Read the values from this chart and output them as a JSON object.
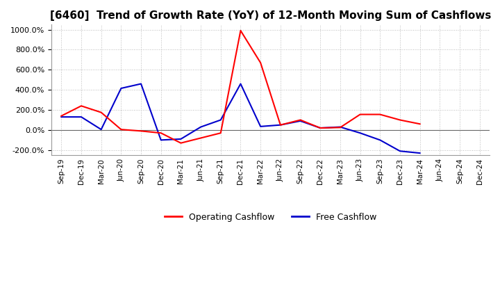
{
  "title": "[6460]  Trend of Growth Rate (YoY) of 12-Month Moving Sum of Cashflows",
  "xlabels": [
    "Sep-19",
    "Dec-19",
    "Mar-20",
    "Jun-20",
    "Sep-20",
    "Dec-20",
    "Mar-21",
    "Jun-21",
    "Sep-21",
    "Dec-21",
    "Mar-22",
    "Jun-22",
    "Sep-22",
    "Dec-22",
    "Mar-23",
    "Jun-23",
    "Sep-23",
    "Dec-23",
    "Mar-24",
    "Jun-24",
    "Sep-24",
    "Dec-24"
  ],
  "operating_cashflow": [
    140,
    240,
    175,
    5,
    -10,
    -30,
    -130,
    -80,
    -30,
    990,
    670,
    50,
    100,
    20,
    25,
    155,
    155,
    100,
    60,
    null,
    null,
    null
  ],
  "free_cashflow": [
    130,
    130,
    5,
    415,
    460,
    -100,
    -90,
    30,
    100,
    460,
    35,
    50,
    90,
    20,
    30,
    -30,
    -100,
    -210,
    -230,
    null,
    null,
    null
  ],
  "ylim": [
    -250,
    1050
  ],
  "yticks": [
    -200,
    0,
    200,
    400,
    600,
    800,
    1000
  ],
  "operating_color": "#ff0000",
  "free_color": "#0000cc",
  "background_color": "#ffffff",
  "grid_color": "#bbbbbb",
  "legend_op": "Operating Cashflow",
  "legend_free": "Free Cashflow",
  "title_fontsize": 11,
  "tick_fontsize": 7.5,
  "linewidth": 1.5
}
